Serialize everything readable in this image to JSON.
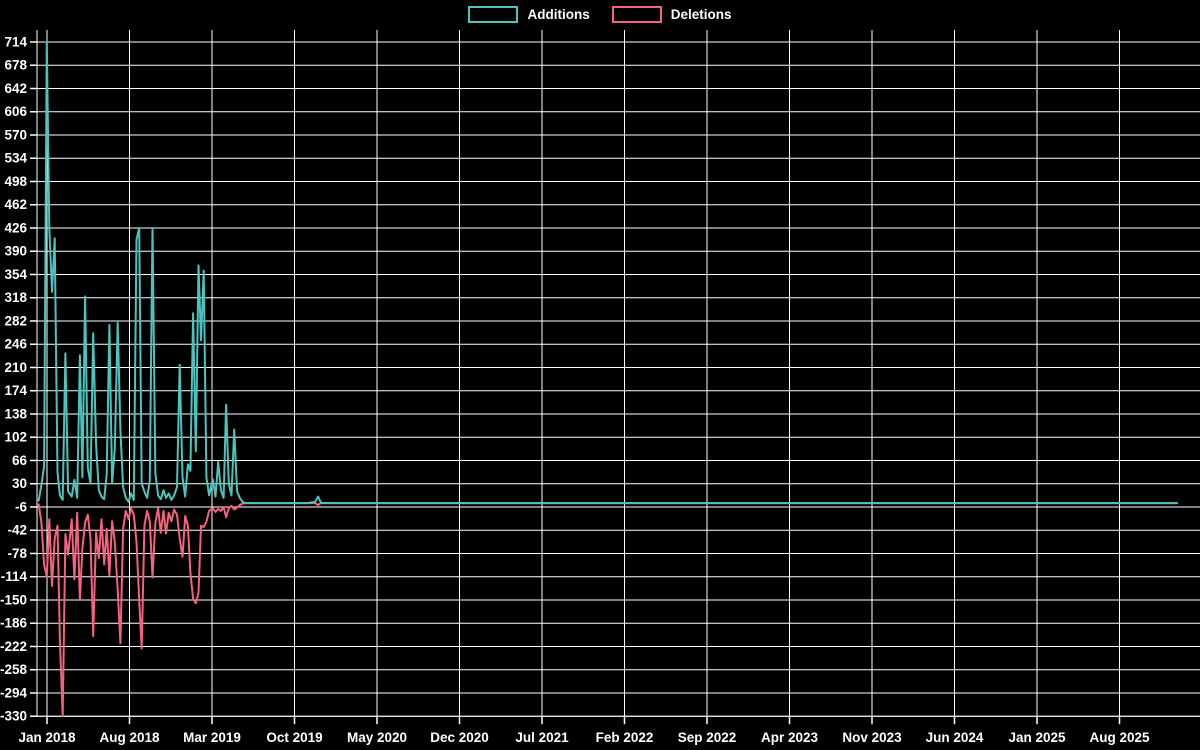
{
  "legend": {
    "items": [
      {
        "label": "Additions"
      },
      {
        "label": "Deletions"
      }
    ]
  },
  "colors": {
    "background": "#000000",
    "grid": "#ffffff",
    "text": "#ffffff",
    "additions": "#4cc4be",
    "deletions": "#f4627f"
  },
  "chart_data": {
    "type": "line",
    "title": "",
    "xlabel": "",
    "ylabel": "",
    "grid": true,
    "legend_position": "top-center",
    "y_axis": {
      "tick_step": 36,
      "ticks": [
        714,
        678,
        642,
        606,
        570,
        534,
        498,
        462,
        426,
        390,
        354,
        318,
        282,
        246,
        210,
        174,
        138,
        102,
        66,
        30,
        -6,
        -42,
        -78,
        -114,
        -150,
        -186,
        -222,
        -258,
        -294,
        -330
      ],
      "range": [
        -330,
        732
      ]
    },
    "x_axis": {
      "ticks": [
        {
          "label": "Jan 2018",
          "date": "2018-01-01"
        },
        {
          "label": "Aug 2018",
          "date": "2018-08-01"
        },
        {
          "label": "Mar 2019",
          "date": "2019-03-01"
        },
        {
          "label": "Oct 2019",
          "date": "2019-10-01"
        },
        {
          "label": "May 2020",
          "date": "2020-05-01"
        },
        {
          "label": "Dec 2020",
          "date": "2020-12-01"
        },
        {
          "label": "Jul 2021",
          "date": "2021-07-01"
        },
        {
          "label": "Feb 2022",
          "date": "2022-02-01"
        },
        {
          "label": "Sep 2022",
          "date": "2022-09-01"
        },
        {
          "label": "Apr 2023",
          "date": "2023-04-01"
        },
        {
          "label": "Nov 2023",
          "date": "2023-11-01"
        },
        {
          "label": "Jun 2024",
          "date": "2024-06-01"
        },
        {
          "label": "Jan 2025",
          "date": "2025-01-01"
        },
        {
          "label": "Aug 2025",
          "date": "2025-08-01"
        }
      ]
    },
    "series": [
      {
        "name": "Additions",
        "color_key": "additions",
        "points": [
          [
            "2017-12-10",
            4
          ],
          [
            "2017-12-17",
            28
          ],
          [
            "2017-12-24",
            57
          ],
          [
            "2017-12-31",
            714
          ],
          [
            "2018-01-07",
            426
          ],
          [
            "2018-01-14",
            327
          ],
          [
            "2018-01-21",
            410
          ],
          [
            "2018-01-28",
            48
          ],
          [
            "2018-02-04",
            12
          ],
          [
            "2018-02-11",
            5
          ],
          [
            "2018-02-18",
            232
          ],
          [
            "2018-02-25",
            18
          ],
          [
            "2018-03-04",
            10
          ],
          [
            "2018-03-11",
            36
          ],
          [
            "2018-03-18",
            8
          ],
          [
            "2018-03-25",
            229
          ],
          [
            "2018-04-01",
            40
          ],
          [
            "2018-04-08",
            320
          ],
          [
            "2018-04-15",
            55
          ],
          [
            "2018-04-22",
            30
          ],
          [
            "2018-04-29",
            263
          ],
          [
            "2018-05-06",
            90
          ],
          [
            "2018-05-13",
            20
          ],
          [
            "2018-05-20",
            10
          ],
          [
            "2018-05-27",
            6
          ],
          [
            "2018-06-03",
            45
          ],
          [
            "2018-06-10",
            276
          ],
          [
            "2018-06-17",
            30
          ],
          [
            "2018-06-24",
            85
          ],
          [
            "2018-07-01",
            279
          ],
          [
            "2018-07-08",
            113
          ],
          [
            "2018-07-15",
            25
          ],
          [
            "2018-07-22",
            8
          ],
          [
            "2018-07-29",
            2
          ],
          [
            "2018-08-05",
            15
          ],
          [
            "2018-08-12",
            5
          ],
          [
            "2018-08-19",
            408
          ],
          [
            "2018-08-26",
            426
          ],
          [
            "2018-09-02",
            30
          ],
          [
            "2018-09-09",
            18
          ],
          [
            "2018-09-16",
            8
          ],
          [
            "2018-09-23",
            35
          ],
          [
            "2018-09-30",
            426
          ],
          [
            "2018-10-07",
            45
          ],
          [
            "2018-10-14",
            12
          ],
          [
            "2018-10-21",
            6
          ],
          [
            "2018-10-28",
            20
          ],
          [
            "2018-11-04",
            8
          ],
          [
            "2018-11-11",
            15
          ],
          [
            "2018-11-18",
            5
          ],
          [
            "2018-11-25",
            12
          ],
          [
            "2018-12-02",
            25
          ],
          [
            "2018-12-09",
            214
          ],
          [
            "2018-12-16",
            40
          ],
          [
            "2018-12-23",
            10
          ],
          [
            "2018-12-30",
            60
          ],
          [
            "2019-01-06",
            50
          ],
          [
            "2019-01-13",
            294
          ],
          [
            "2019-01-20",
            80
          ],
          [
            "2019-01-27",
            368
          ],
          [
            "2019-02-03",
            252
          ],
          [
            "2019-02-10",
            360
          ],
          [
            "2019-02-17",
            40
          ],
          [
            "2019-02-24",
            12
          ],
          [
            "2019-03-03",
            37
          ],
          [
            "2019-03-10",
            10
          ],
          [
            "2019-03-17",
            64
          ],
          [
            "2019-03-24",
            20
          ],
          [
            "2019-03-31",
            8
          ],
          [
            "2019-04-07",
            152
          ],
          [
            "2019-04-14",
            30
          ],
          [
            "2019-04-21",
            12
          ],
          [
            "2019-04-28",
            114
          ],
          [
            "2019-05-05",
            18
          ],
          [
            "2019-05-12",
            8
          ],
          [
            "2019-05-19",
            2
          ],
          [
            "2019-05-26",
            0
          ],
          [
            "2019-06-02",
            0
          ],
          [
            "2019-07-07",
            0
          ],
          [
            "2019-08-04",
            0
          ],
          [
            "2019-09-01",
            0
          ],
          [
            "2019-10-06",
            0
          ],
          [
            "2019-11-03",
            0
          ],
          [
            "2019-11-24",
            2
          ],
          [
            "2019-12-01",
            10
          ],
          [
            "2019-12-08",
            1
          ],
          [
            "2019-12-15",
            0
          ],
          [
            "2020-02-02",
            0
          ],
          [
            "2020-05-03",
            0
          ],
          [
            "2020-08-02",
            0
          ],
          [
            "2020-11-01",
            0
          ],
          [
            "2021-02-07",
            0
          ],
          [
            "2021-05-02",
            0
          ],
          [
            "2021-08-01",
            0
          ],
          [
            "2021-11-07",
            0
          ],
          [
            "2022-02-06",
            0
          ],
          [
            "2022-05-01",
            0
          ],
          [
            "2022-08-07",
            0
          ],
          [
            "2022-11-06",
            0
          ],
          [
            "2023-02-05",
            0
          ],
          [
            "2023-05-07",
            0
          ],
          [
            "2023-08-06",
            0
          ],
          [
            "2023-11-05",
            0
          ],
          [
            "2024-02-04",
            0
          ],
          [
            "2024-05-05",
            0
          ],
          [
            "2024-08-04",
            0
          ],
          [
            "2024-11-03",
            0
          ],
          [
            "2025-02-02",
            0
          ],
          [
            "2025-05-04",
            0
          ],
          [
            "2025-08-03",
            0
          ],
          [
            "2025-12-28",
            0
          ]
        ]
      },
      {
        "name": "Deletions",
        "color_key": "deletions",
        "points": [
          [
            "2017-12-10",
            -2
          ],
          [
            "2017-12-17",
            -30
          ],
          [
            "2017-12-24",
            -95
          ],
          [
            "2017-12-31",
            -114
          ],
          [
            "2018-01-07",
            -25
          ],
          [
            "2018-01-14",
            -128
          ],
          [
            "2018-01-21",
            -55
          ],
          [
            "2018-01-28",
            -35
          ],
          [
            "2018-02-04",
            -212
          ],
          [
            "2018-02-11",
            -330
          ],
          [
            "2018-02-18",
            -48
          ],
          [
            "2018-02-25",
            -80
          ],
          [
            "2018-03-04",
            -25
          ],
          [
            "2018-03-11",
            -118
          ],
          [
            "2018-03-18",
            -15
          ],
          [
            "2018-03-25",
            -150
          ],
          [
            "2018-04-01",
            -70
          ],
          [
            "2018-04-08",
            -30
          ],
          [
            "2018-04-15",
            -18
          ],
          [
            "2018-04-22",
            -55
          ],
          [
            "2018-04-29",
            -206
          ],
          [
            "2018-05-06",
            -45
          ],
          [
            "2018-05-13",
            -85
          ],
          [
            "2018-05-20",
            -25
          ],
          [
            "2018-05-27",
            -95
          ],
          [
            "2018-06-03",
            -40
          ],
          [
            "2018-06-10",
            -112
          ],
          [
            "2018-06-17",
            -28
          ],
          [
            "2018-06-24",
            -60
          ],
          [
            "2018-07-01",
            -135
          ],
          [
            "2018-07-08",
            -217
          ],
          [
            "2018-07-15",
            -40
          ],
          [
            "2018-07-22",
            -12
          ],
          [
            "2018-07-29",
            -25
          ],
          [
            "2018-08-05",
            -8
          ],
          [
            "2018-08-12",
            -18
          ],
          [
            "2018-08-19",
            -60
          ],
          [
            "2018-08-26",
            -150
          ],
          [
            "2018-09-02",
            -225
          ],
          [
            "2018-09-09",
            -35
          ],
          [
            "2018-09-16",
            -12
          ],
          [
            "2018-09-23",
            -28
          ],
          [
            "2018-09-30",
            -115
          ],
          [
            "2018-10-07",
            -30
          ],
          [
            "2018-10-14",
            -8
          ],
          [
            "2018-10-21",
            -46
          ],
          [
            "2018-10-28",
            -12
          ],
          [
            "2018-11-04",
            -47
          ],
          [
            "2018-11-11",
            -15
          ],
          [
            "2018-11-18",
            -28
          ],
          [
            "2018-11-25",
            -10
          ],
          [
            "2018-12-02",
            -18
          ],
          [
            "2018-12-09",
            -55
          ],
          [
            "2018-12-16",
            -83
          ],
          [
            "2018-12-23",
            -20
          ],
          [
            "2018-12-30",
            -35
          ],
          [
            "2019-01-06",
            -108
          ],
          [
            "2019-01-13",
            -148
          ],
          [
            "2019-01-20",
            -155
          ],
          [
            "2019-01-27",
            -139
          ],
          [
            "2019-02-03",
            -35
          ],
          [
            "2019-02-10",
            -37
          ],
          [
            "2019-02-17",
            -29
          ],
          [
            "2019-02-24",
            -12
          ],
          [
            "2019-03-03",
            -8
          ],
          [
            "2019-03-10",
            -14
          ],
          [
            "2019-03-17",
            -9
          ],
          [
            "2019-03-24",
            -12
          ],
          [
            "2019-03-31",
            -6
          ],
          [
            "2019-04-07",
            -22
          ],
          [
            "2019-04-14",
            -8
          ],
          [
            "2019-04-21",
            -4
          ],
          [
            "2019-04-28",
            -10
          ],
          [
            "2019-05-05",
            -7
          ],
          [
            "2019-05-12",
            -3
          ],
          [
            "2019-05-19",
            -1
          ],
          [
            "2019-05-26",
            0
          ],
          [
            "2019-06-02",
            0
          ],
          [
            "2019-07-07",
            0
          ],
          [
            "2019-08-04",
            0
          ],
          [
            "2019-09-01",
            0
          ],
          [
            "2019-10-06",
            0
          ],
          [
            "2019-11-03",
            0
          ],
          [
            "2019-11-24",
            0
          ],
          [
            "2019-12-01",
            -3
          ],
          [
            "2019-12-08",
            0
          ],
          [
            "2019-12-15",
            0
          ],
          [
            "2020-02-02",
            0
          ],
          [
            "2020-05-03",
            0
          ],
          [
            "2020-08-02",
            0
          ],
          [
            "2020-11-01",
            0
          ],
          [
            "2021-02-07",
            0
          ],
          [
            "2021-05-02",
            0
          ],
          [
            "2021-08-01",
            0
          ],
          [
            "2021-11-07",
            0
          ],
          [
            "2022-02-06",
            0
          ],
          [
            "2022-05-01",
            0
          ],
          [
            "2022-08-07",
            0
          ],
          [
            "2022-11-06",
            0
          ],
          [
            "2023-02-05",
            0
          ],
          [
            "2023-05-07",
            0
          ],
          [
            "2023-08-06",
            0
          ],
          [
            "2023-11-05",
            0
          ],
          [
            "2024-02-04",
            0
          ],
          [
            "2024-05-05",
            0
          ],
          [
            "2024-08-04",
            0
          ],
          [
            "2024-11-03",
            0
          ],
          [
            "2025-02-02",
            0
          ],
          [
            "2025-05-04",
            0
          ],
          [
            "2025-08-03",
            0
          ],
          [
            "2025-12-28",
            0
          ]
        ]
      }
    ]
  }
}
